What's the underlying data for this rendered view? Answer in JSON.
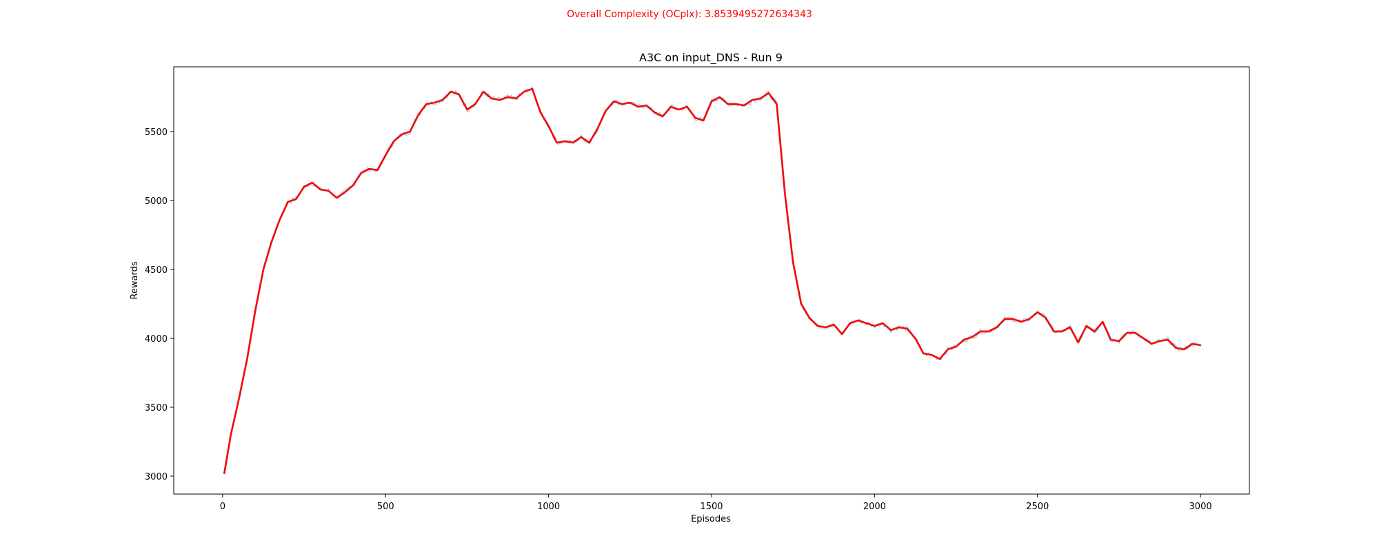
{
  "suptitle": "Overall Complexity (OCplx): 3.8539495272634343",
  "chart_data": {
    "type": "line",
    "title": "A3C on input_DNS - Run 9",
    "xlabel": "Episodes",
    "ylabel": "Rewards",
    "xlim": [
      -150,
      3150
    ],
    "ylim": [
      2870,
      5970
    ],
    "xticks": [
      0,
      500,
      1000,
      1500,
      2000,
      2500,
      3000
    ],
    "yticks": [
      3000,
      3500,
      4000,
      4500,
      5000,
      5500
    ],
    "grid": false,
    "legend": "none",
    "colors": {
      "smoothed": "#ff0000",
      "raw": "#9dbcd4",
      "axes": "#000000",
      "suptitle": "#ff0000"
    },
    "series": [
      {
        "role": "smoothed",
        "x": [
          5,
          25,
          50,
          75,
          100,
          125,
          150,
          175,
          200,
          225,
          250,
          275,
          300,
          325,
          350,
          375,
          400,
          425,
          450,
          475,
          500,
          525,
          550,
          575,
          600,
          625,
          650,
          675,
          700,
          725,
          750,
          775,
          800,
          825,
          850,
          875,
          900,
          925,
          950,
          975,
          1000,
          1025,
          1050,
          1075,
          1100,
          1125,
          1150,
          1175,
          1200,
          1225,
          1250,
          1275,
          1300,
          1325,
          1350,
          1375,
          1400,
          1425,
          1450,
          1475,
          1500,
          1525,
          1550,
          1575,
          1600,
          1625,
          1650,
          1675,
          1700,
          1725,
          1750,
          1775,
          1800,
          1825,
          1850,
          1875,
          1900,
          1925,
          1950,
          1975,
          2000,
          2025,
          2050,
          2075,
          2100,
          2125,
          2150,
          2175,
          2200,
          2225,
          2250,
          2275,
          2300,
          2325,
          2350,
          2375,
          2400,
          2425,
          2450,
          2475,
          2500,
          2525,
          2550,
          2575,
          2600,
          2625,
          2650,
          2675,
          2700,
          2725,
          2750,
          2775,
          2800,
          2825,
          2850,
          2875,
          2900,
          2925,
          2950,
          2975,
          3000
        ],
        "y": [
          3020,
          3300,
          3560,
          3850,
          4200,
          4500,
          4700,
          4860,
          4990,
          5010,
          5100,
          5130,
          5080,
          5070,
          5020,
          5060,
          5110,
          5200,
          5230,
          5220,
          5330,
          5430,
          5480,
          5500,
          5620,
          5700,
          5710,
          5730,
          5790,
          5770,
          5660,
          5700,
          5790,
          5740,
          5730,
          5750,
          5740,
          5790,
          5810,
          5640,
          5540,
          5420,
          5430,
          5420,
          5460,
          5420,
          5520,
          5650,
          5720,
          5700,
          5710,
          5680,
          5690,
          5640,
          5610,
          5680,
          5660,
          5680,
          5600,
          5580,
          5720,
          5750,
          5700,
          5700,
          5690,
          5730,
          5740,
          5780,
          5700,
          5050,
          4550,
          4250,
          4150,
          4090,
          4080,
          4100,
          4030,
          4110,
          4130,
          4110,
          4090,
          4110,
          4060,
          4080,
          4070,
          4000,
          3890,
          3880,
          3850,
          3920,
          3940,
          3990,
          4010,
          4050,
          4050,
          4080,
          4140,
          4140,
          4120,
          4140,
          4190,
          4150,
          4050,
          4050,
          4080,
          3970,
          4090,
          4050,
          4120,
          3990,
          3980,
          4040,
          4040,
          4000,
          3960,
          3980,
          3990,
          3930,
          3920,
          3960,
          3950
        ]
      }
    ]
  }
}
